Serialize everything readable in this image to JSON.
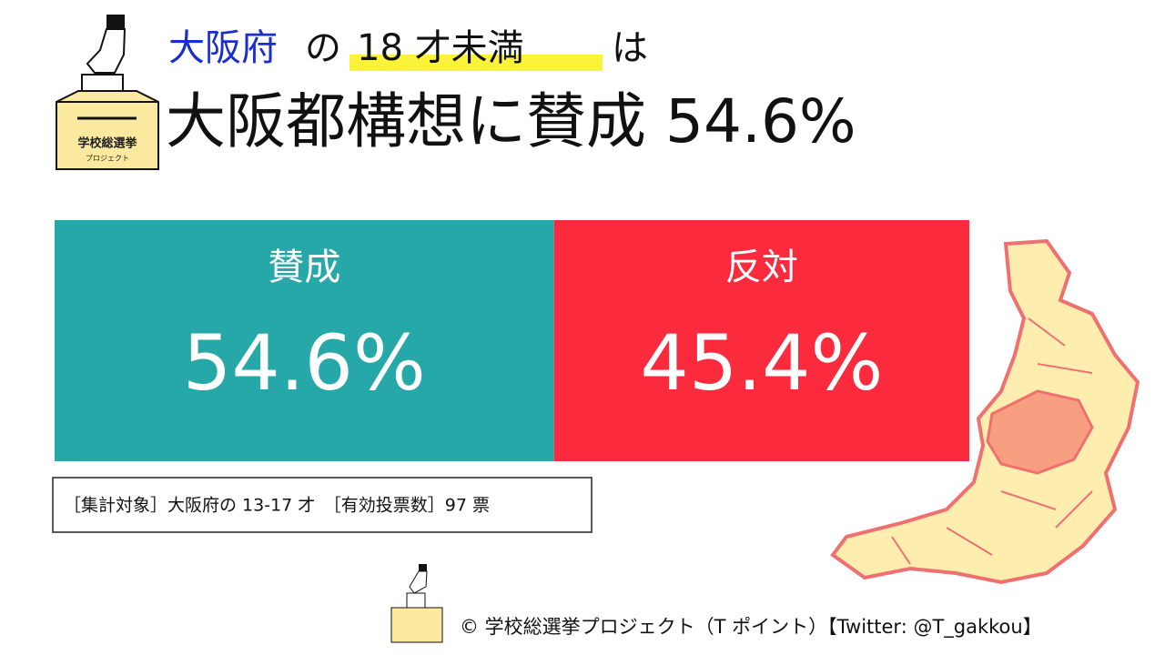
{
  "chart_data": {
    "type": "bar",
    "title_parts": [
      "大阪府",
      "の",
      "18 才未満",
      "は"
    ],
    "headline": "大阪都構想に賛成 54.6%",
    "categories": [
      "賛成",
      "反対"
    ],
    "values": [
      54.6,
      45.4
    ],
    "value_labels": [
      "54.6%",
      "45.4%"
    ],
    "colors": [
      "#26a7a8",
      "#fb2a3d"
    ],
    "xlim": [
      0,
      100
    ],
    "note": "［集計対象］大阪府の 13-17 才　［有効投票数］97 票",
    "logo_text": "学校総選挙",
    "logo_subtext": "プロジェクト",
    "credit": "© 学校総選挙プロジェクト（T ポイント）【Twitter: @T_gakkou】"
  }
}
